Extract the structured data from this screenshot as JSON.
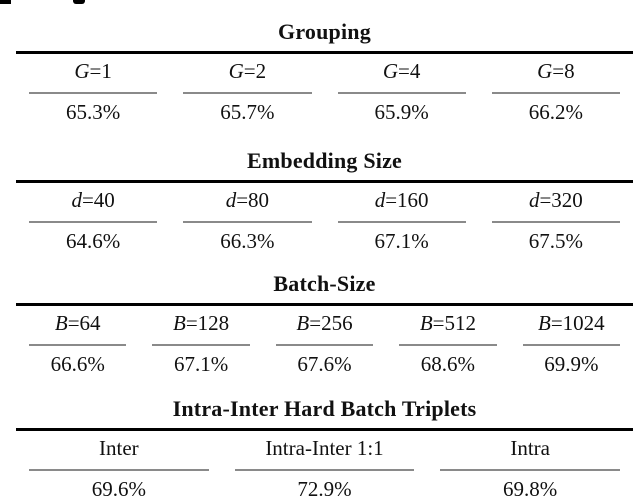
{
  "page": {
    "background": "#ffffff",
    "text_color": "#111111",
    "heavy_rule_color": "#000000",
    "light_rule_color": "#8a8a8a"
  },
  "sections": [
    {
      "title": "Grouping",
      "columns": [
        {
          "header_var": "G",
          "header_rest": "=1",
          "value": "65.3%"
        },
        {
          "header_var": "G",
          "header_rest": "=2",
          "value": "65.7%"
        },
        {
          "header_var": "G",
          "header_rest": "=4",
          "value": "65.9%"
        },
        {
          "header_var": "G",
          "header_rest": "=8",
          "value": "66.2%"
        }
      ]
    },
    {
      "title": "Embedding Size",
      "columns": [
        {
          "header_var": "d",
          "header_rest": "=40",
          "value": "64.6%"
        },
        {
          "header_var": "d",
          "header_rest": "=80",
          "value": "66.3%"
        },
        {
          "header_var": "d",
          "header_rest": "=160",
          "value": "67.1%"
        },
        {
          "header_var": "d",
          "header_rest": "=320",
          "value": "67.5%"
        }
      ]
    },
    {
      "title": "Batch-Size",
      "columns": [
        {
          "header_var": "B",
          "header_rest": "=64",
          "value": "66.6%"
        },
        {
          "header_var": "B",
          "header_rest": "=128",
          "value": "67.1%"
        },
        {
          "header_var": "B",
          "header_rest": "=256",
          "value": "67.6%"
        },
        {
          "header_var": "B",
          "header_rest": "=512",
          "value": "68.6%"
        },
        {
          "header_var": "B",
          "header_rest": "=1024",
          "value": "69.9%"
        }
      ]
    },
    {
      "title": "Intra-Inter Hard Batch Triplets",
      "columns": [
        {
          "header_var": "",
          "header_rest": "Inter",
          "value": "69.6%"
        },
        {
          "header_var": "",
          "header_rest": "Intra-Inter 1:1",
          "value": "72.9%"
        },
        {
          "header_var": "",
          "header_rest": "Intra",
          "value": "69.8%"
        }
      ]
    }
  ]
}
